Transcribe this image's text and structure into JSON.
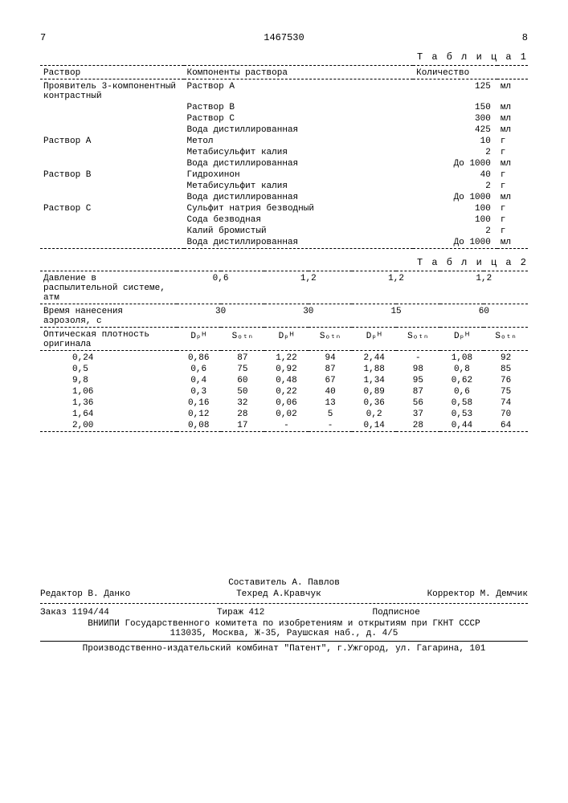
{
  "header": {
    "left_page": "7",
    "doc_number": "1467530",
    "right_page": "8"
  },
  "table1": {
    "label": "Т а б л и ц а 1",
    "headers": [
      "Раствор",
      "Компоненты раствора",
      "Количество"
    ],
    "groups": [
      {
        "name": "Проявитель 3-компонентный контрастный",
        "rows": [
          [
            "",
            "Раствор А",
            "125",
            "мл"
          ],
          [
            "",
            "Раствор В",
            "150",
            "мл"
          ],
          [
            "",
            "Раствор С",
            "300",
            "мл"
          ],
          [
            "",
            "Вода дистиллированная",
            "425",
            "мл"
          ]
        ]
      },
      {
        "name": "Раствор А",
        "rows": [
          [
            "",
            "Метол",
            "10",
            "г"
          ],
          [
            "",
            "Метабисульфит калия",
            "2",
            "г"
          ],
          [
            "",
            "Вода дистиллированная",
            "До 1000",
            "мл"
          ]
        ]
      },
      {
        "name": "Раствор В",
        "rows": [
          [
            "",
            "Гидрохинон",
            "40",
            "г"
          ],
          [
            "",
            "Метабисульфит калия",
            "2",
            "г"
          ],
          [
            "",
            "Вода дистиллированная",
            "До 1000",
            "мл"
          ]
        ]
      },
      {
        "name": "Раствор С",
        "rows": [
          [
            "",
            "Сульфит натрия безводный",
            "100",
            "г"
          ],
          [
            "",
            "Сода безводная",
            "100",
            "г"
          ],
          [
            "",
            "Калий бромистый",
            "2",
            "г"
          ],
          [
            "",
            "Вода дистиллированная",
            "До 1000",
            "мл"
          ]
        ]
      }
    ]
  },
  "table2": {
    "label": "Т а б л и ц а 2",
    "pressure_label": "Давление в распылительной системе, атм",
    "pressure_values": [
      "0,6",
      "1,2",
      "1,2",
      "1,2"
    ],
    "time_label": "Время нанесения аэрозоля, с",
    "time_values": [
      "30",
      "30",
      "15",
      "60"
    ],
    "density_label": "Оптическая плотность оригинала",
    "col_dp": "Dₚᴴ",
    "col_sotn": "Sₒₜₙ",
    "rows": [
      [
        "0,24",
        "0,86",
        "87",
        "1,22",
        "94",
        "2,44",
        "-",
        "1,08",
        "92"
      ],
      [
        "0,5",
        "0,6",
        "75",
        "0,92",
        "87",
        "1,88",
        "98",
        "0,8",
        "85"
      ],
      [
        "9,8",
        "0,4",
        "60",
        "0,48",
        "67",
        "1,34",
        "95",
        "0,62",
        "76"
      ],
      [
        "1,06",
        "0,3",
        "50",
        "0,22",
        "40",
        "0,89",
        "87",
        "0,6",
        "75"
      ],
      [
        "1,36",
        "0,16",
        "32",
        "0,06",
        "13",
        "0,36",
        "56",
        "0,58",
        "74"
      ],
      [
        "1,64",
        "0,12",
        "28",
        "0,02",
        "5",
        "0,2",
        "37",
        "0,53",
        "70"
      ],
      [
        "2,00",
        "0,08",
        "17",
        "-",
        "-",
        "0,14",
        "28",
        "0,44",
        "64"
      ]
    ]
  },
  "footer": {
    "compiler": "Составитель А. Павлов",
    "editor": "Редактор В. Данко",
    "techred": "Техред А.Кравчук",
    "corrector": "Корректор М. Демчик",
    "order": "Заказ 1194/44",
    "tirage": "Тираж 412",
    "podpisnoe": "Подписное",
    "org": "ВНИИПИ Государственного комитета по изобретениям и открытиям при ГКНТ СССР",
    "address": "113035, Москва, Ж-35, Раушская наб., д. 4/5",
    "publisher": "Производственно-издательский комбинат \"Патент\", г.Ужгород, ул. Гагарина, 101"
  }
}
